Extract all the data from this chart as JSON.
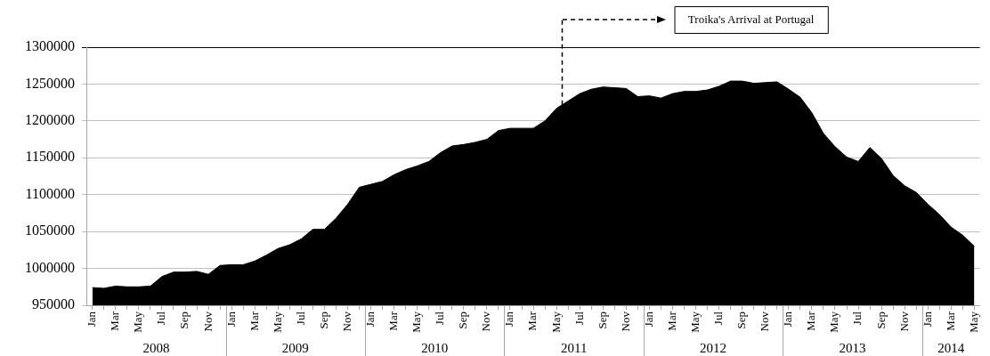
{
  "chart_data": {
    "type": "area",
    "x": [
      "2008-01",
      "2008-02",
      "2008-03",
      "2008-04",
      "2008-05",
      "2008-06",
      "2008-07",
      "2008-08",
      "2008-09",
      "2008-10",
      "2008-11",
      "2008-12",
      "2009-01",
      "2009-02",
      "2009-03",
      "2009-04",
      "2009-05",
      "2009-06",
      "2009-07",
      "2009-08",
      "2009-09",
      "2009-10",
      "2009-11",
      "2009-12",
      "2010-01",
      "2010-02",
      "2010-03",
      "2010-04",
      "2010-05",
      "2010-06",
      "2010-07",
      "2010-08",
      "2010-09",
      "2010-10",
      "2010-11",
      "2010-12",
      "2011-01",
      "2011-02",
      "2011-03",
      "2011-04",
      "2011-05",
      "2011-06",
      "2011-07",
      "2011-08",
      "2011-09",
      "2011-10",
      "2011-11",
      "2011-12",
      "2012-01",
      "2012-02",
      "2012-03",
      "2012-04",
      "2012-05",
      "2012-06",
      "2012-07",
      "2012-08",
      "2012-09",
      "2012-10",
      "2012-11",
      "2012-12",
      "2013-01",
      "2013-02",
      "2013-03",
      "2013-04",
      "2013-05",
      "2013-06",
      "2013-07",
      "2013-08",
      "2013-09",
      "2013-10",
      "2013-11",
      "2013-12",
      "2014-01",
      "2014-02",
      "2014-03",
      "2014-04",
      "2014-05"
    ],
    "values": [
      974000,
      973000,
      976000,
      975000,
      975000,
      976000,
      989000,
      995000,
      995000,
      996000,
      992000,
      1004000,
      1005000,
      1005000,
      1010000,
      1018000,
      1027000,
      1032000,
      1040000,
      1053000,
      1053000,
      1068000,
      1087000,
      1110000,
      1114000,
      1118000,
      1127000,
      1134000,
      1139000,
      1145000,
      1157000,
      1166000,
      1168000,
      1171000,
      1175000,
      1187000,
      1190000,
      1190000,
      1190000,
      1200000,
      1217000,
      1227000,
      1237000,
      1243000,
      1246000,
      1245000,
      1244000,
      1233000,
      1234000,
      1231000,
      1237000,
      1240000,
      1240000,
      1242000,
      1247000,
      1254000,
      1254000,
      1251000,
      1252000,
      1253000,
      1243000,
      1232000,
      1211000,
      1183000,
      1165000,
      1151000,
      1145000,
      1164000,
      1149000,
      1126000,
      1112000,
      1103000,
      1087000,
      1073000,
      1056000,
      1045000,
      1030000
    ],
    "color": "#000000",
    "xlim": [
      "2007-12-16",
      "2014-05-16"
    ],
    "xticks": [
      {
        "value": "2008-01",
        "label": "Jan"
      },
      {
        "value": "2008-02",
        "label": null
      },
      {
        "value": "2008-03",
        "label": "Mar"
      },
      {
        "value": "2008-04",
        "label": null
      },
      {
        "value": "2008-05",
        "label": "May"
      },
      {
        "value": "2008-06",
        "label": null
      },
      {
        "value": "2008-07",
        "label": "Jul"
      },
      {
        "value": "2008-08",
        "label": null
      },
      {
        "value": "2008-09",
        "label": "Sep"
      },
      {
        "value": "2008-10",
        "label": null
      },
      {
        "value": "2008-11",
        "label": "Nov"
      },
      {
        "value": "2008-12",
        "label": null
      },
      {
        "value": "2009-01",
        "label": "Jan"
      },
      {
        "value": "2009-02",
        "label": null
      },
      {
        "value": "2009-03",
        "label": "Mar"
      },
      {
        "value": "2009-04",
        "label": null
      },
      {
        "value": "2009-05",
        "label": "May"
      },
      {
        "value": "2009-06",
        "label": null
      },
      {
        "value": "2009-07",
        "label": "Jul"
      },
      {
        "value": "2009-08",
        "label": null
      },
      {
        "value": "2009-09",
        "label": "Sep"
      },
      {
        "value": "2009-10",
        "label": null
      },
      {
        "value": "2009-11",
        "label": "Nov"
      },
      {
        "value": "2009-12",
        "label": null
      },
      {
        "value": "2010-01",
        "label": "Jan"
      },
      {
        "value": "2010-02",
        "label": null
      },
      {
        "value": "2010-03",
        "label": "Mar"
      },
      {
        "value": "2010-04",
        "label": null
      },
      {
        "value": "2010-05",
        "label": "May"
      },
      {
        "value": "2010-06",
        "label": null
      },
      {
        "value": "2010-07",
        "label": "Jul"
      },
      {
        "value": "2010-08",
        "label": null
      },
      {
        "value": "2010-09",
        "label": "Sep"
      },
      {
        "value": "2010-10",
        "label": null
      },
      {
        "value": "2010-11",
        "label": "Nov"
      },
      {
        "value": "2010-12",
        "label": null
      },
      {
        "value": "2011-01",
        "label": "Jan"
      },
      {
        "value": "2011-02",
        "label": null
      },
      {
        "value": "2011-03",
        "label": "Mar"
      },
      {
        "value": "2011-04",
        "label": null
      },
      {
        "value": "2011-05",
        "label": "May"
      },
      {
        "value": "2011-06",
        "label": null
      },
      {
        "value": "2011-07",
        "label": "Jul"
      },
      {
        "value": "2011-08",
        "label": null
      },
      {
        "value": "2011-09",
        "label": "Sep"
      },
      {
        "value": "2011-10",
        "label": null
      },
      {
        "value": "2011-11",
        "label": "Nov"
      },
      {
        "value": "2011-12",
        "label": null
      },
      {
        "value": "2012-01",
        "label": "Jan"
      },
      {
        "value": "2012-02",
        "label": null
      },
      {
        "value": "2012-03",
        "label": "Mar"
      },
      {
        "value": "2012-04",
        "label": null
      },
      {
        "value": "2012-05",
        "label": "May"
      },
      {
        "value": "2012-06",
        "label": null
      },
      {
        "value": "2012-07",
        "label": "Jul"
      },
      {
        "value": "2012-08",
        "label": null
      },
      {
        "value": "2012-09",
        "label": "Sep"
      },
      {
        "value": "2012-10",
        "label": null
      },
      {
        "value": "2012-11",
        "label": "Nov"
      },
      {
        "value": "2012-12",
        "label": null
      },
      {
        "value": "2013-01",
        "label": "Jan"
      },
      {
        "value": "2013-02",
        "label": null
      },
      {
        "value": "2013-03",
        "label": "Mar"
      },
      {
        "value": "2013-04",
        "label": null
      },
      {
        "value": "2013-05",
        "label": "May"
      },
      {
        "value": "2013-06",
        "label": null
      },
      {
        "value": "2013-07",
        "label": "Jul"
      },
      {
        "value": "2013-08",
        "label": null
      },
      {
        "value": "2013-09",
        "label": "Sep"
      },
      {
        "value": "2013-10",
        "label": null
      },
      {
        "value": "2013-11",
        "label": "Nov"
      },
      {
        "value": "2013-12",
        "label": null
      },
      {
        "value": "2014-01",
        "label": "Jan"
      },
      {
        "value": "2014-02",
        "label": null
      },
      {
        "value": "2014-03",
        "label": "Mar"
      },
      {
        "value": "2014-04",
        "label": null
      },
      {
        "value": "2014-05",
        "label": "May"
      }
    ],
    "ylim": [
      950000,
      1300000
    ],
    "yticks": [
      950000,
      1000000,
      1050000,
      1100000,
      1150000,
      1200000,
      1250000,
      1300000
    ],
    "grid": "y",
    "legend": false,
    "ref_lines": [
      {
        "axis": "x",
        "value": "2011-05-16",
        "label": "Troika's Arrival at Portugal",
        "color": "#000000",
        "line_style": "dashed"
      }
    ],
    "annotations": [
      "2008",
      "2009",
      "2010",
      "2011",
      "2012",
      "2013",
      "2014"
    ]
  }
}
